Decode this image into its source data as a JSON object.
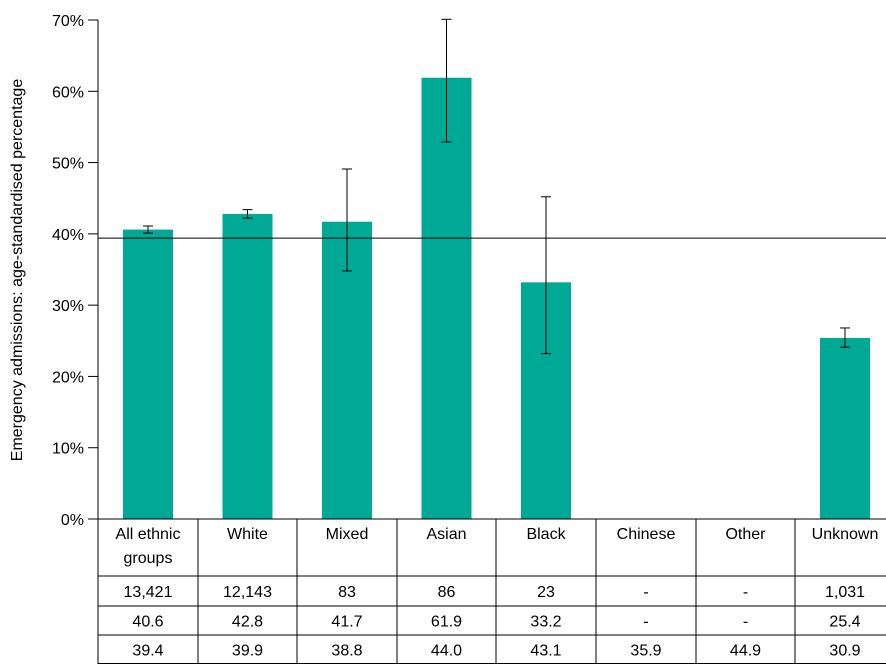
{
  "chart_data": {
    "type": "bar",
    "ylabel": "Emergency admissions: age-standardised percentage",
    "ylim": [
      0,
      70
    ],
    "y_ticks": [
      "0%",
      "10%",
      "20%",
      "30%",
      "40%",
      "50%",
      "60%",
      "70%"
    ],
    "categories": [
      [
        "All ethnic",
        "groups"
      ],
      [
        "White"
      ],
      [
        "Mixed"
      ],
      [
        "Asian"
      ],
      [
        "Black"
      ],
      [
        "Chinese"
      ],
      [
        "Other"
      ],
      [
        "Unknown"
      ]
    ],
    "values": [
      40.6,
      42.8,
      41.7,
      61.9,
      33.2,
      null,
      null,
      25.4
    ],
    "error_low": [
      40.1,
      42.2,
      34.8,
      52.9,
      23.2,
      null,
      null,
      24.1
    ],
    "error_high": [
      41.1,
      43.4,
      49.1,
      70.1,
      45.2,
      null,
      null,
      26.8
    ],
    "reference_line": 39.4,
    "bar_color": "#00a896",
    "table_rows": [
      [
        "13,421",
        "12,143",
        "83",
        "86",
        "23",
        "-",
        "-",
        "1,031"
      ],
      [
        "40.6",
        "42.8",
        "41.7",
        "61.9",
        "33.2",
        "-",
        "-",
        "25.4"
      ],
      [
        "39.4",
        "39.9",
        "38.8",
        "44.0",
        "43.1",
        "35.9",
        "44.9",
        "30.9"
      ]
    ]
  }
}
